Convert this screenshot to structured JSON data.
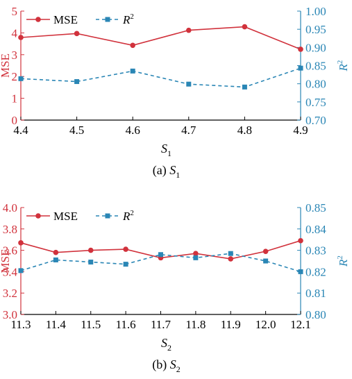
{
  "colors": {
    "mse": "#d1323c",
    "r2": "#2a86b5",
    "axis": "#000000"
  },
  "chart_data": [
    {
      "type": "line",
      "x": [
        4.4,
        4.5,
        4.6,
        4.7,
        4.8,
        4.9
      ],
      "xticks": [
        "4.4",
        "4.5",
        "4.6",
        "4.7",
        "4.8",
        "4.9"
      ],
      "xlabel_main": "S",
      "xlabel_sub": "1",
      "caption_prefix": "(a) ",
      "caption_main": "S",
      "caption_sub": "1",
      "ylim_left": [
        0,
        5
      ],
      "yticks_left": [
        "0",
        "1",
        "2",
        "3",
        "4",
        "5"
      ],
      "ylabel_left": "MSE",
      "ylim_right": [
        0.7,
        1.0
      ],
      "yticks_right": [
        "0.70",
        "0.75",
        "0.80",
        "0.85",
        "0.90",
        "0.95",
        "1.00"
      ],
      "ylabel_right": "R",
      "ylabel_right_sup": "2",
      "legend": {
        "mse": "MSE",
        "r2": "R",
        "r2_sup": "2",
        "position": "top-left"
      },
      "series": [
        {
          "name": "MSE",
          "axis": "left",
          "style": "solid-circle",
          "values": [
            3.79,
            3.97,
            3.43,
            4.12,
            4.28,
            3.25
          ]
        },
        {
          "name": "R2",
          "axis": "right",
          "style": "dashed-square",
          "values": [
            0.814,
            0.806,
            0.835,
            0.799,
            0.791,
            0.843
          ]
        }
      ]
    },
    {
      "type": "line",
      "x": [
        11.3,
        11.4,
        11.5,
        11.6,
        11.7,
        11.8,
        11.9,
        12.0,
        12.1
      ],
      "xticks": [
        "11.3",
        "11.4",
        "11.5",
        "11.6",
        "11.7",
        "11.8",
        "11.9",
        "12.0",
        "12.1"
      ],
      "xlabel_main": "S",
      "xlabel_sub": "2",
      "caption_prefix": "(b) ",
      "caption_main": "S",
      "caption_sub": "2",
      "ylim_left": [
        3.0,
        4.0
      ],
      "yticks_left": [
        "3.0",
        "3.2",
        "3.4",
        "3.6",
        "3.8",
        "4.0"
      ],
      "ylabel_left": "MSE",
      "ylim_right": [
        0.8,
        0.85
      ],
      "yticks_right": [
        "0.80",
        "0.81",
        "0.82",
        "0.83",
        "0.84",
        "0.85"
      ],
      "ylabel_right": "R",
      "ylabel_right_sup": "2",
      "legend": {
        "mse": "MSE",
        "r2": "R",
        "r2_sup": "2",
        "position": "top-left"
      },
      "series": [
        {
          "name": "MSE",
          "axis": "left",
          "style": "solid-circle",
          "values": [
            3.67,
            3.58,
            3.6,
            3.61,
            3.53,
            3.57,
            3.52,
            3.59,
            3.69
          ]
        },
        {
          "name": "R2",
          "axis": "right",
          "style": "dashed-square",
          "values": [
            0.8205,
            0.8255,
            0.8245,
            0.8235,
            0.828,
            0.8265,
            0.8285,
            0.825,
            0.82
          ]
        }
      ]
    }
  ]
}
